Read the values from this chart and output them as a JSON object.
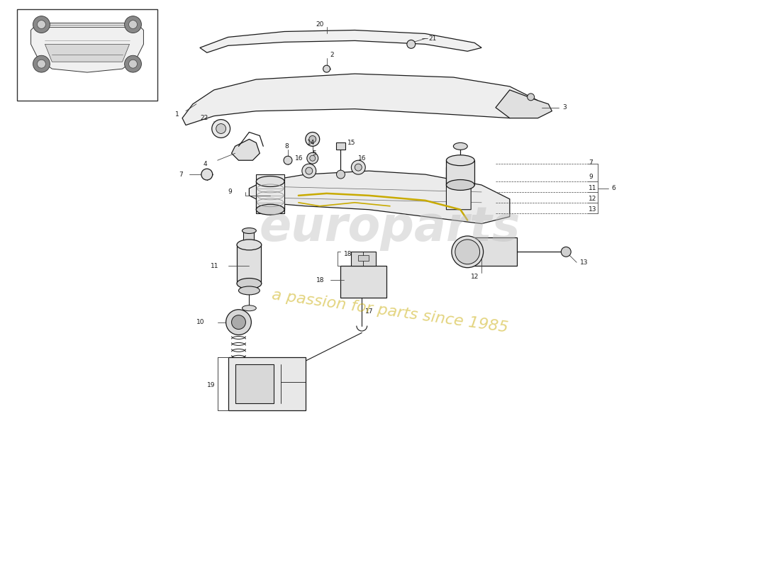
{
  "bg_color": "#ffffff",
  "line_color": "#1a1a1a",
  "watermark1": "europarts",
  "watermark2": "a passion for parts since 1985",
  "wm_color1": "#b8b8b8",
  "wm_color2": "#c8aa00"
}
